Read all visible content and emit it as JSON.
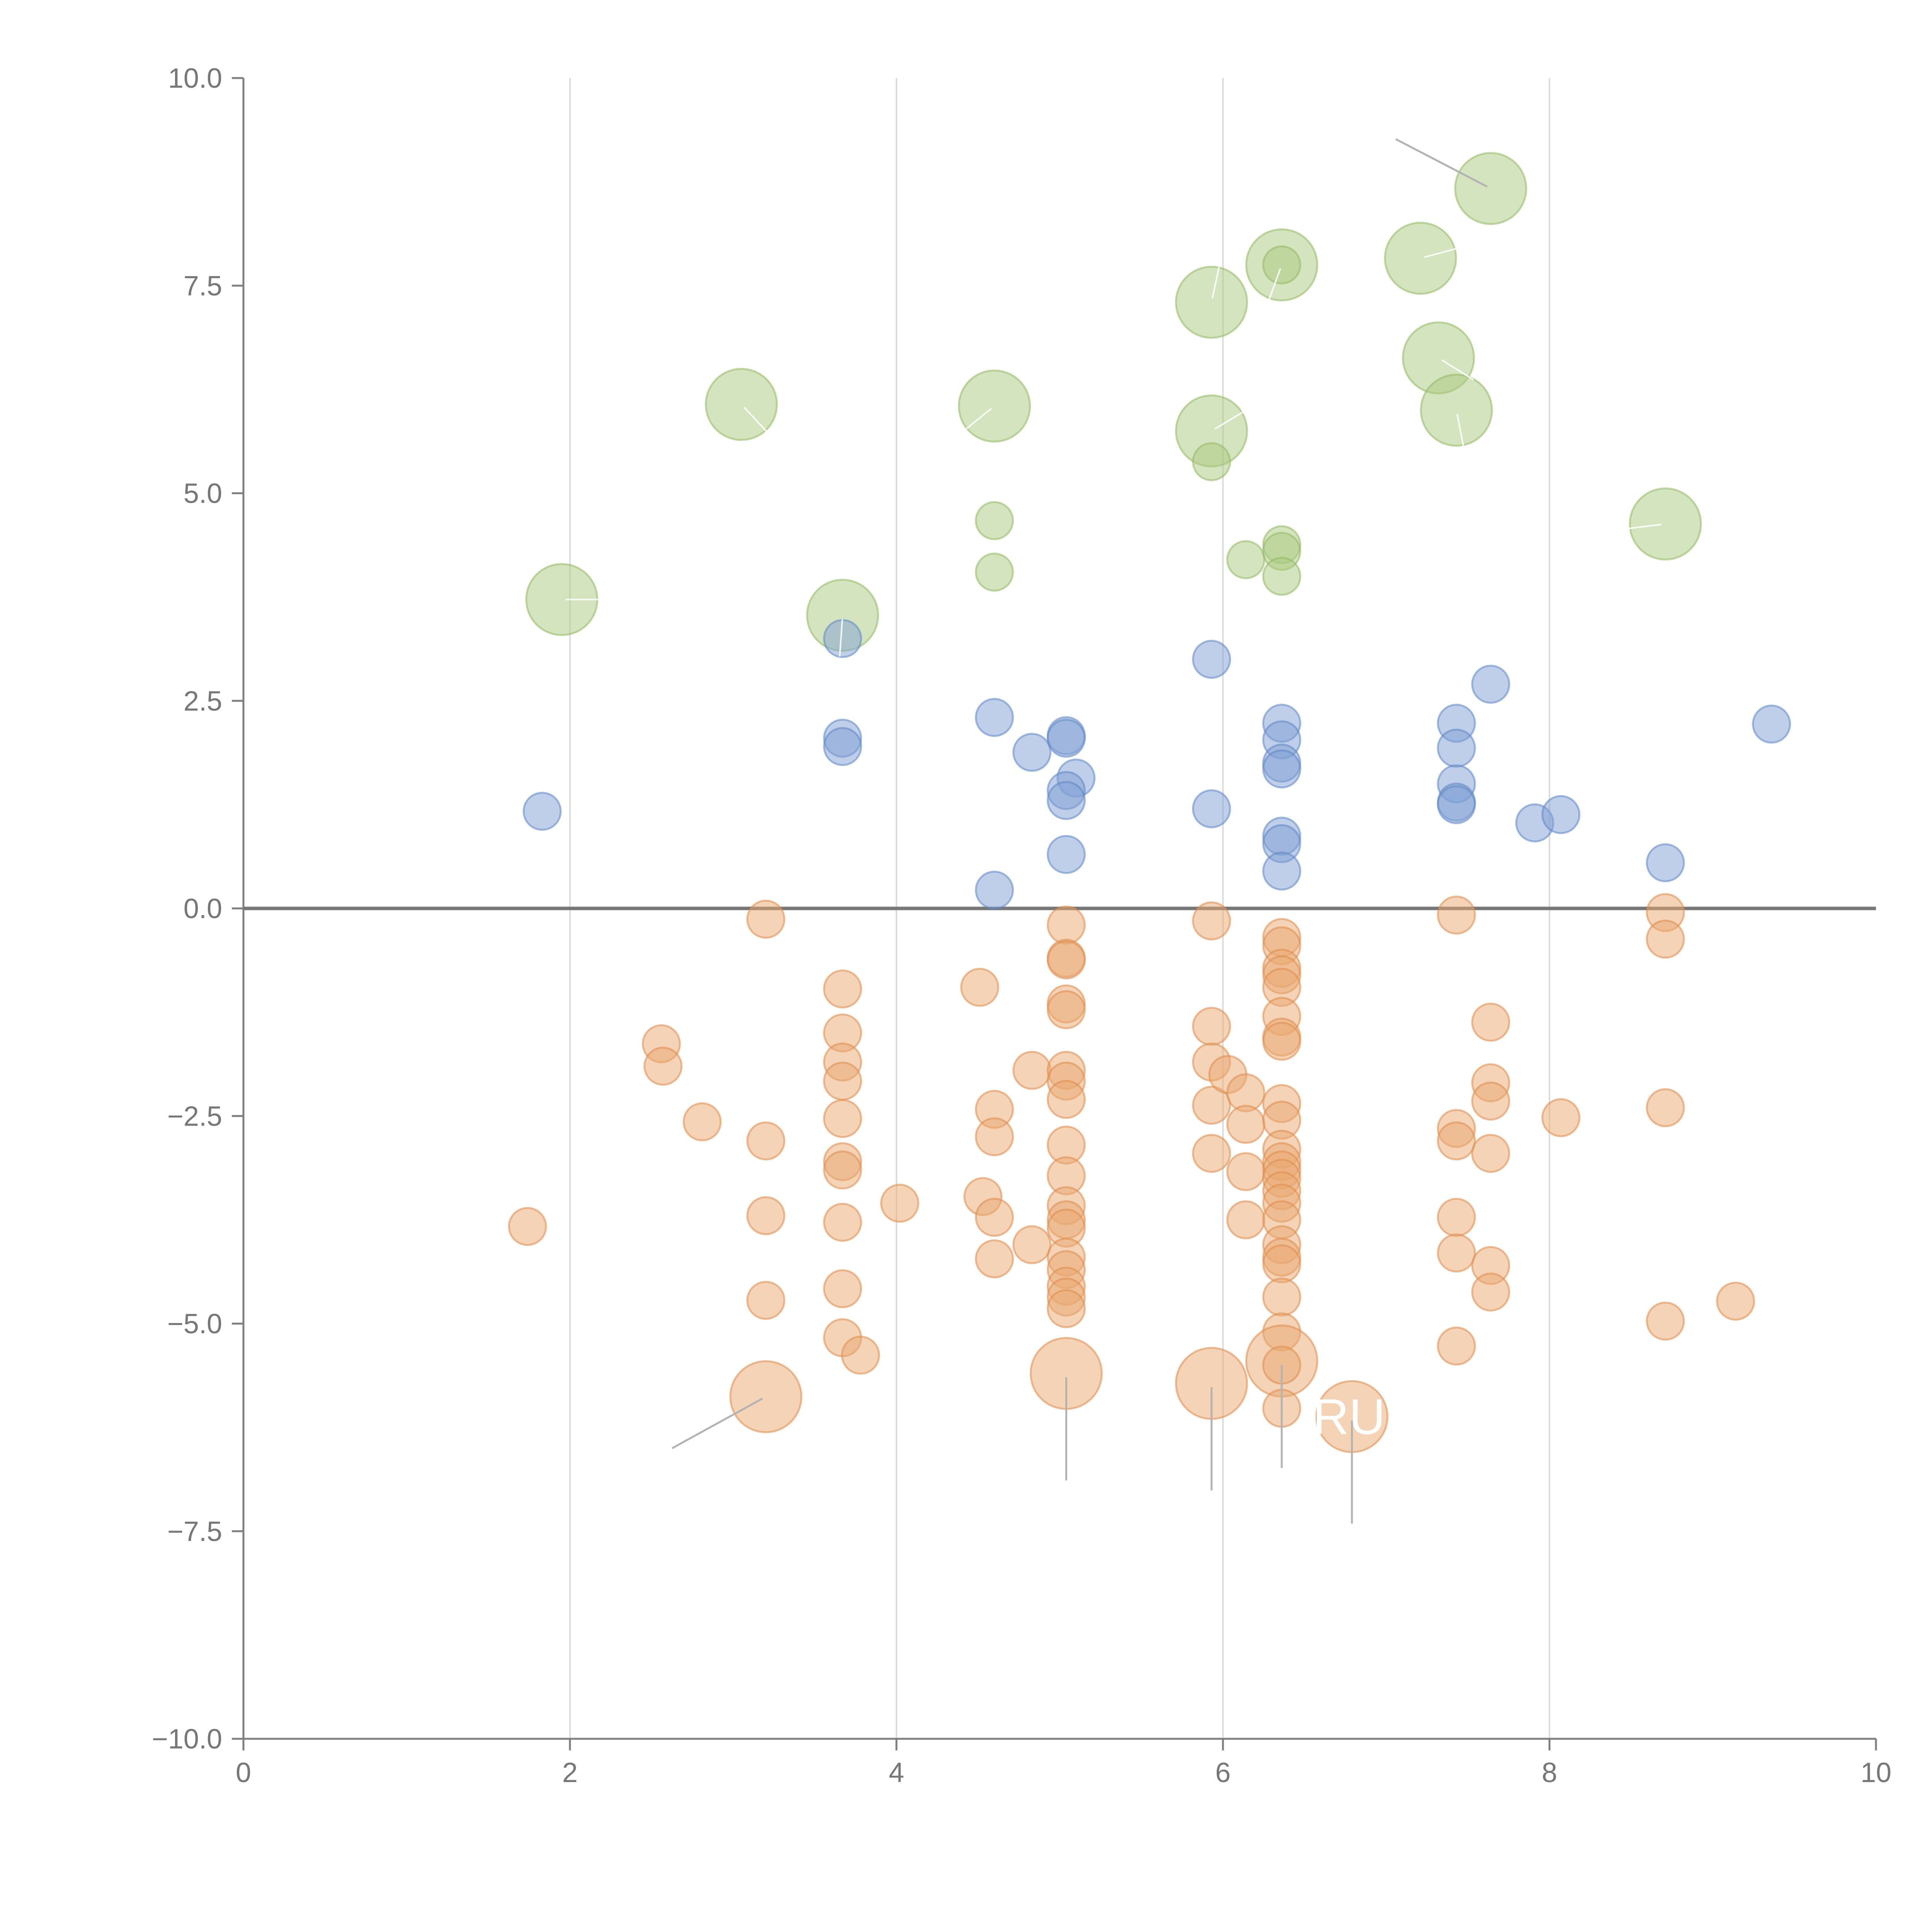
{
  "chart_data": {
    "type": "scatter",
    "title": "",
    "xlabel": "",
    "ylabel": "",
    "xlim": [
      0,
      10
    ],
    "ylim": [
      -10,
      10
    ],
    "grid": "vertical",
    "x_ticks": [
      "0",
      "2",
      "4",
      "6",
      "8",
      "10"
    ],
    "y_ticks": [
      "10.0",
      "7.5",
      "5.0",
      "2.5",
      "0.0",
      "−2.5",
      "−5.0",
      "−7.5",
      "−10.0"
    ],
    "reference_line_y": 0,
    "colors": {
      "green": "#a9c97e",
      "blue": "#7fa0d4",
      "orange": "#e9a86f",
      "green_stroke": "#94b865",
      "blue_stroke": "#5f86c4",
      "orange_stroke": "#de8d4c"
    },
    "series": [
      {
        "name": "green",
        "color": "green",
        "points": [
          {
            "x": 1.95,
            "y": 3.72,
            "size": "large"
          },
          {
            "x": 3.05,
            "y": 6.07,
            "size": "large"
          },
          {
            "x": 3.67,
            "y": 3.53,
            "size": "large"
          },
          {
            "x": 4.6,
            "y": 6.05,
            "size": "large"
          },
          {
            "x": 4.6,
            "y": 4.67,
            "size": "small"
          },
          {
            "x": 4.6,
            "y": 4.05,
            "size": "small"
          },
          {
            "x": 5.93,
            "y": 7.3,
            "size": "large"
          },
          {
            "x": 5.93,
            "y": 5.75,
            "size": "large"
          },
          {
            "x": 5.93,
            "y": 5.38,
            "size": "small"
          },
          {
            "x": 6.14,
            "y": 4.2,
            "size": "small"
          },
          {
            "x": 6.36,
            "y": 7.75,
            "size": "large"
          },
          {
            "x": 6.36,
            "y": 7.75,
            "size": "small"
          },
          {
            "x": 6.36,
            "y": 4.38,
            "size": "small"
          },
          {
            "x": 6.36,
            "y": 4.3,
            "size": "small"
          },
          {
            "x": 6.36,
            "y": 4.0,
            "size": "small"
          },
          {
            "x": 7.21,
            "y": 7.83,
            "size": "large"
          },
          {
            "x": 7.32,
            "y": 6.63,
            "size": "large"
          },
          {
            "x": 7.43,
            "y": 6.0,
            "size": "large"
          },
          {
            "x": 7.64,
            "y": 8.67,
            "size": "large"
          },
          {
            "x": 8.71,
            "y": 4.63,
            "size": "large"
          }
        ]
      },
      {
        "name": "blue",
        "color": "blue",
        "points": [
          {
            "x": 1.83,
            "y": 1.17,
            "size": "small"
          },
          {
            "x": 3.67,
            "y": 3.25,
            "size": "small"
          },
          {
            "x": 3.67,
            "y": 2.05,
            "size": "small"
          },
          {
            "x": 3.67,
            "y": 1.95,
            "size": "small"
          },
          {
            "x": 4.6,
            "y": 2.3,
            "size": "small"
          },
          {
            "x": 4.6,
            "y": 0.22,
            "size": "small"
          },
          {
            "x": 4.83,
            "y": 1.88,
            "size": "small"
          },
          {
            "x": 5.04,
            "y": 2.08,
            "size": "small"
          },
          {
            "x": 5.04,
            "y": 2.05,
            "size": "small"
          },
          {
            "x": 5.1,
            "y": 1.57,
            "size": "small"
          },
          {
            "x": 5.04,
            "y": 1.42,
            "size": "small"
          },
          {
            "x": 5.04,
            "y": 1.3,
            "size": "small"
          },
          {
            "x": 5.04,
            "y": 0.65,
            "size": "small"
          },
          {
            "x": 5.93,
            "y": 3.0,
            "size": "small"
          },
          {
            "x": 5.93,
            "y": 1.2,
            "size": "small"
          },
          {
            "x": 6.36,
            "y": 2.23,
            "size": "small"
          },
          {
            "x": 6.36,
            "y": 2.03,
            "size": "small"
          },
          {
            "x": 6.36,
            "y": 1.75,
            "size": "small"
          },
          {
            "x": 6.36,
            "y": 1.68,
            "size": "small"
          },
          {
            "x": 6.36,
            "y": 0.87,
            "size": "small"
          },
          {
            "x": 6.36,
            "y": 0.78,
            "size": "small"
          },
          {
            "x": 6.36,
            "y": 0.45,
            "size": "small"
          },
          {
            "x": 7.43,
            "y": 2.23,
            "size": "small"
          },
          {
            "x": 7.43,
            "y": 1.93,
            "size": "small"
          },
          {
            "x": 7.43,
            "y": 1.5,
            "size": "small"
          },
          {
            "x": 7.43,
            "y": 1.28,
            "size": "small"
          },
          {
            "x": 7.43,
            "y": 1.25,
            "size": "small"
          },
          {
            "x": 7.64,
            "y": 2.7,
            "size": "small"
          },
          {
            "x": 7.91,
            "y": 1.03,
            "size": "small"
          },
          {
            "x": 8.07,
            "y": 1.13,
            "size": "small"
          },
          {
            "x": 8.71,
            "y": 0.55,
            "size": "small"
          },
          {
            "x": 9.36,
            "y": 2.22,
            "size": "small"
          }
        ]
      },
      {
        "name": "orange",
        "color": "orange",
        "points": [
          {
            "x": 1.74,
            "y": -3.83,
            "size": "small"
          },
          {
            "x": 2.56,
            "y": -1.63,
            "size": "small"
          },
          {
            "x": 2.57,
            "y": -1.9,
            "size": "small"
          },
          {
            "x": 2.81,
            "y": -2.57,
            "size": "small"
          },
          {
            "x": 3.2,
            "y": -0.13,
            "size": "small"
          },
          {
            "x": 3.2,
            "y": -2.8,
            "size": "small"
          },
          {
            "x": 3.2,
            "y": -3.7,
            "size": "small"
          },
          {
            "x": 3.2,
            "y": -4.72,
            "size": "small"
          },
          {
            "x": 3.2,
            "y": -5.88,
            "size": "large"
          },
          {
            "x": 3.67,
            "y": -0.97,
            "size": "small"
          },
          {
            "x": 3.67,
            "y": -1.5,
            "size": "small"
          },
          {
            "x": 3.67,
            "y": -1.85,
            "size": "small"
          },
          {
            "x": 3.67,
            "y": -2.08,
            "size": "small"
          },
          {
            "x": 3.67,
            "y": -2.53,
            "size": "small"
          },
          {
            "x": 3.67,
            "y": -3.05,
            "size": "small"
          },
          {
            "x": 3.67,
            "y": -3.15,
            "size": "small"
          },
          {
            "x": 3.67,
            "y": -3.78,
            "size": "small"
          },
          {
            "x": 3.67,
            "y": -4.58,
            "size": "small"
          },
          {
            "x": 3.67,
            "y": -5.17,
            "size": "small"
          },
          {
            "x": 3.78,
            "y": -5.38,
            "size": "small"
          },
          {
            "x": 4.02,
            "y": -3.55,
            "size": "small"
          },
          {
            "x": 4.51,
            "y": -0.95,
            "size": "small"
          },
          {
            "x": 4.53,
            "y": -3.47,
            "size": "small"
          },
          {
            "x": 4.6,
            "y": -2.42,
            "size": "small"
          },
          {
            "x": 4.6,
            "y": -2.75,
            "size": "small"
          },
          {
            "x": 4.6,
            "y": -3.72,
            "size": "small"
          },
          {
            "x": 4.6,
            "y": -4.22,
            "size": "small"
          },
          {
            "x": 4.83,
            "y": -1.95,
            "size": "small"
          },
          {
            "x": 4.83,
            "y": -4.05,
            "size": "small"
          },
          {
            "x": 5.04,
            "y": -0.2,
            "size": "small"
          },
          {
            "x": 5.04,
            "y": -0.6,
            "size": "small"
          },
          {
            "x": 5.04,
            "y": -0.62,
            "size": "small"
          },
          {
            "x": 5.04,
            "y": -1.15,
            "size": "small"
          },
          {
            "x": 5.04,
            "y": -1.22,
            "size": "small"
          },
          {
            "x": 5.04,
            "y": -1.95,
            "size": "small"
          },
          {
            "x": 5.04,
            "y": -2.08,
            "size": "small"
          },
          {
            "x": 5.04,
            "y": -2.3,
            "size": "small"
          },
          {
            "x": 5.04,
            "y": -2.85,
            "size": "small"
          },
          {
            "x": 5.04,
            "y": -3.22,
            "size": "small"
          },
          {
            "x": 5.04,
            "y": -3.58,
            "size": "small"
          },
          {
            "x": 5.04,
            "y": -3.75,
            "size": "small"
          },
          {
            "x": 5.04,
            "y": -3.85,
            "size": "small"
          },
          {
            "x": 5.04,
            "y": -4.2,
            "size": "small"
          },
          {
            "x": 5.04,
            "y": -4.35,
            "size": "small"
          },
          {
            "x": 5.04,
            "y": -4.55,
            "size": "small"
          },
          {
            "x": 5.04,
            "y": -4.68,
            "size": "small"
          },
          {
            "x": 5.04,
            "y": -4.82,
            "size": "small"
          },
          {
            "x": 5.04,
            "y": -5.6,
            "size": "large"
          },
          {
            "x": 5.93,
            "y": -0.15,
            "size": "small"
          },
          {
            "x": 5.93,
            "y": -1.42,
            "size": "small"
          },
          {
            "x": 5.93,
            "y": -1.85,
            "size": "small"
          },
          {
            "x": 5.93,
            "y": -2.37,
            "size": "small"
          },
          {
            "x": 5.93,
            "y": -2.95,
            "size": "small"
          },
          {
            "x": 5.93,
            "y": -5.72,
            "size": "large"
          },
          {
            "x": 6.03,
            "y": -2.0,
            "size": "small"
          },
          {
            "x": 6.14,
            "y": -2.22,
            "size": "small"
          },
          {
            "x": 6.14,
            "y": -2.6,
            "size": "small"
          },
          {
            "x": 6.14,
            "y": -3.17,
            "size": "small"
          },
          {
            "x": 6.14,
            "y": -3.75,
            "size": "small"
          },
          {
            "x": 6.36,
            "y": -0.35,
            "size": "small"
          },
          {
            "x": 6.36,
            "y": -0.45,
            "size": "small"
          },
          {
            "x": 6.36,
            "y": -0.72,
            "size": "small"
          },
          {
            "x": 6.36,
            "y": -0.8,
            "size": "small"
          },
          {
            "x": 6.36,
            "y": -0.95,
            "size": "small"
          },
          {
            "x": 6.36,
            "y": -1.3,
            "size": "small"
          },
          {
            "x": 6.36,
            "y": -1.55,
            "size": "small"
          },
          {
            "x": 6.36,
            "y": -1.6,
            "size": "small"
          },
          {
            "x": 6.36,
            "y": -2.35,
            "size": "small"
          },
          {
            "x": 6.36,
            "y": -2.55,
            "size": "small"
          },
          {
            "x": 6.36,
            "y": -2.9,
            "size": "small"
          },
          {
            "x": 6.36,
            "y": -3.05,
            "size": "small"
          },
          {
            "x": 6.36,
            "y": -3.15,
            "size": "small"
          },
          {
            "x": 6.36,
            "y": -3.25,
            "size": "small"
          },
          {
            "x": 6.36,
            "y": -3.4,
            "size": "small"
          },
          {
            "x": 6.36,
            "y": -3.55,
            "size": "small"
          },
          {
            "x": 6.36,
            "y": -3.75,
            "size": "small"
          },
          {
            "x": 6.36,
            "y": -4.05,
            "size": "small"
          },
          {
            "x": 6.36,
            "y": -4.2,
            "size": "small"
          },
          {
            "x": 6.36,
            "y": -4.28,
            "size": "small"
          },
          {
            "x": 6.36,
            "y": -4.68,
            "size": "small"
          },
          {
            "x": 6.36,
            "y": -5.1,
            "size": "small"
          },
          {
            "x": 6.36,
            "y": -5.45,
            "size": "large"
          },
          {
            "x": 6.36,
            "y": -5.5,
            "size": "small"
          },
          {
            "x": 6.36,
            "y": -6.02,
            "size": "small"
          },
          {
            "x": 6.79,
            "y": -6.12,
            "size": "large"
          },
          {
            "x": 7.43,
            "y": -0.08,
            "size": "small"
          },
          {
            "x": 7.43,
            "y": -2.65,
            "size": "small"
          },
          {
            "x": 7.43,
            "y": -2.8,
            "size": "small"
          },
          {
            "x": 7.43,
            "y": -3.72,
            "size": "small"
          },
          {
            "x": 7.43,
            "y": -4.15,
            "size": "small"
          },
          {
            "x": 7.43,
            "y": -5.27,
            "size": "small"
          },
          {
            "x": 7.64,
            "y": -1.37,
            "size": "small"
          },
          {
            "x": 7.64,
            "y": -2.1,
            "size": "small"
          },
          {
            "x": 7.64,
            "y": -2.32,
            "size": "small"
          },
          {
            "x": 7.64,
            "y": -2.95,
            "size": "small"
          },
          {
            "x": 7.64,
            "y": -4.3,
            "size": "small"
          },
          {
            "x": 7.64,
            "y": -4.62,
            "size": "small"
          },
          {
            "x": 8.07,
            "y": -2.52,
            "size": "small"
          },
          {
            "x": 8.71,
            "y": -0.05,
            "size": "small"
          },
          {
            "x": 8.71,
            "y": -0.37,
            "size": "small"
          },
          {
            "x": 8.71,
            "y": -2.4,
            "size": "small"
          },
          {
            "x": 8.71,
            "y": -4.97,
            "size": "small"
          },
          {
            "x": 9.14,
            "y": -4.73,
            "size": "small"
          }
        ]
      }
    ],
    "annotations": [
      {
        "text": "RUN",
        "x": 6.55,
        "y": -6.12
      },
      {
        "text": "I",
        "x": 2.17,
        "y": 3.72
      }
    ]
  }
}
